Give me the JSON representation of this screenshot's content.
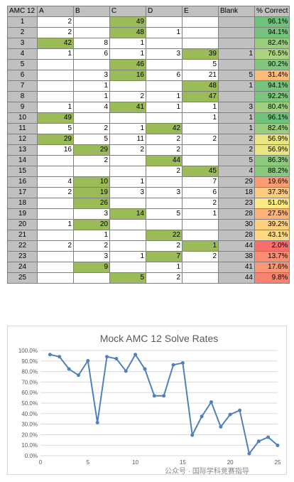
{
  "table": {
    "headers": [
      "AMC 12",
      "A",
      "B",
      "C",
      "D",
      "E",
      "Blank",
      "% Correct"
    ],
    "rows": [
      {
        "n": "1",
        "A": "2",
        "B": "",
        "C": "49",
        "D": "",
        "E": "",
        "blank": "",
        "pct": "96.1%",
        "correct": "C"
      },
      {
        "n": "2",
        "A": "2",
        "B": "",
        "C": "48",
        "D": "1",
        "E": "",
        "blank": "",
        "pct": "94.1%",
        "correct": "C"
      },
      {
        "n": "3",
        "A": "42",
        "B": "8",
        "C": "1",
        "D": "",
        "E": "",
        "blank": "",
        "pct": "82.4%",
        "correct": "A"
      },
      {
        "n": "4",
        "A": "1",
        "B": "6",
        "C": "1",
        "D": "3",
        "E": "39",
        "blank": "1",
        "pct": "76.5%",
        "correct": "E"
      },
      {
        "n": "5",
        "A": "",
        "B": "",
        "C": "46",
        "D": "",
        "E": "5",
        "blank": "",
        "pct": "90.2%",
        "correct": "C"
      },
      {
        "n": "6",
        "A": "",
        "B": "3",
        "C": "16",
        "D": "6",
        "E": "21",
        "blank": "5",
        "pct": "31.4%",
        "correct": "C"
      },
      {
        "n": "7",
        "A": "",
        "B": "1",
        "C": "",
        "D": "",
        "E": "48",
        "blank": "1",
        "pct": "94.1%",
        "correct": "E"
      },
      {
        "n": "8",
        "A": "",
        "B": "1",
        "C": "2",
        "D": "1",
        "E": "47",
        "blank": "",
        "pct": "92.2%",
        "correct": "E"
      },
      {
        "n": "9",
        "A": "1",
        "B": "4",
        "C": "41",
        "D": "1",
        "E": "1",
        "blank": "3",
        "pct": "80.4%",
        "correct": "C"
      },
      {
        "n": "10",
        "A": "49",
        "B": "",
        "C": "",
        "D": "",
        "E": "1",
        "blank": "1",
        "pct": "96.1%",
        "correct": "A"
      },
      {
        "n": "11",
        "A": "5",
        "B": "2",
        "C": "1",
        "D": "42",
        "E": "",
        "blank": "1",
        "pct": "82.4%",
        "correct": "D"
      },
      {
        "n": "12",
        "A": "29",
        "B": "5",
        "C": "11",
        "D": "2",
        "E": "2",
        "blank": "2",
        "pct": "56.9%",
        "correct": "A"
      },
      {
        "n": "13",
        "A": "16",
        "B": "29",
        "C": "2",
        "D": "2",
        "E": "",
        "blank": "2",
        "pct": "56.9%",
        "correct": "B"
      },
      {
        "n": "14",
        "A": "",
        "B": "2",
        "C": "",
        "D": "44",
        "E": "",
        "blank": "5",
        "pct": "86.3%",
        "correct": "D"
      },
      {
        "n": "15",
        "A": "",
        "B": "",
        "C": "",
        "D": "2",
        "E": "45",
        "blank": "4",
        "pct": "88.2%",
        "correct": "E"
      },
      {
        "n": "16",
        "A": "4",
        "B": "10",
        "C": "1",
        "D": "",
        "E": "7",
        "blank": "29",
        "pct": "19.6%",
        "correct": "B"
      },
      {
        "n": "17",
        "A": "2",
        "B": "19",
        "C": "3",
        "D": "3",
        "E": "6",
        "blank": "18",
        "pct": "37.3%",
        "correct": "B"
      },
      {
        "n": "18",
        "A": "",
        "B": "26",
        "C": "",
        "D": "",
        "E": "2",
        "blank": "23",
        "pct": "51.0%",
        "correct": "B"
      },
      {
        "n": "19",
        "A": "",
        "B": "3",
        "C": "14",
        "D": "5",
        "E": "1",
        "blank": "28",
        "pct": "27.5%",
        "correct": "C"
      },
      {
        "n": "20",
        "A": "1",
        "B": "20",
        "C": "",
        "D": "",
        "E": "",
        "blank": "30",
        "pct": "39.2%",
        "correct": "B"
      },
      {
        "n": "21",
        "A": "",
        "B": "1",
        "C": "",
        "D": "22",
        "E": "",
        "blank": "28",
        "pct": "43.1%",
        "correct": "D"
      },
      {
        "n": "22",
        "A": "2",
        "B": "2",
        "C": "",
        "D": "2",
        "E": "1",
        "blank": "44",
        "pct": "2.0%",
        "correct": "E"
      },
      {
        "n": "23",
        "A": "",
        "B": "3",
        "C": "1",
        "D": "7",
        "E": "2",
        "blank": "38",
        "pct": "13.7%",
        "correct": "D"
      },
      {
        "n": "24",
        "A": "",
        "B": "9",
        "C": "",
        "D": "1",
        "E": "",
        "blank": "41",
        "pct": "17.6%",
        "correct": "B"
      },
      {
        "n": "25",
        "A": "",
        "B": "",
        "C": "5",
        "D": "2",
        "E": "",
        "blank": "44",
        "pct": "9.8%",
        "correct": "C"
      }
    ]
  },
  "colors": {
    "correct_fill": "#9bbb59",
    "header_fill": "#c0c0c0",
    "scale_high": "#63be7b",
    "scale_mid": "#ffeb84",
    "scale_low": "#f8696b",
    "line": "#4f81bd"
  },
  "chart_data": {
    "type": "line",
    "title": "Mock AMC 12 Solve Rates",
    "x": [
      1,
      2,
      3,
      4,
      5,
      6,
      7,
      8,
      9,
      10,
      11,
      12,
      13,
      14,
      15,
      16,
      17,
      18,
      19,
      20,
      21,
      22,
      23,
      24,
      25
    ],
    "series": [
      {
        "values": [
          96.1,
          94.1,
          82.4,
          76.5,
          90.2,
          31.4,
          94.1,
          92.2,
          80.4,
          96.1,
          82.4,
          56.9,
          56.9,
          86.3,
          88.2,
          19.6,
          37.3,
          51.0,
          27.5,
          39.2,
          43.1,
          2.0,
          13.7,
          17.6,
          9.8
        ]
      }
    ],
    "xlim": [
      0,
      25
    ],
    "ylim": [
      0,
      100
    ],
    "x_ticks": [
      0,
      5,
      10,
      15,
      20,
      25
    ],
    "y_ticks": [
      "0.0%",
      "10.0%",
      "20.0%",
      "30.0%",
      "40.0%",
      "50.0%",
      "60.0%",
      "70.0%",
      "80.0%",
      "90.0%",
      "100.0%"
    ],
    "grid": "horizontal",
    "xlabel": "",
    "ylabel": ""
  },
  "watermark": "公众号 · 国际学科竞赛指导"
}
